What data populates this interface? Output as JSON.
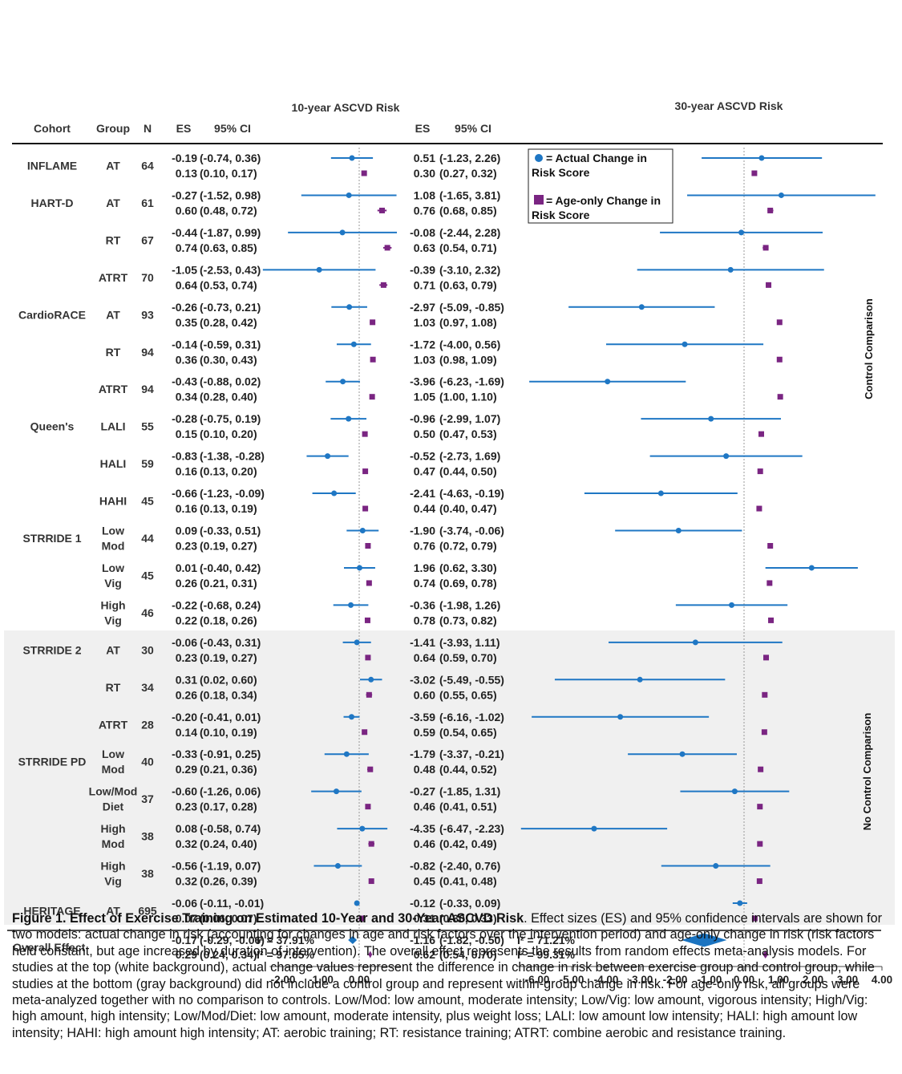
{
  "chart_data": {
    "type": "forest",
    "title_left": "10-year ASCVD Risk",
    "title_right": "30-year ASCVD Risk",
    "columns": {
      "cohort": "Cohort",
      "group": "Group",
      "n": "N",
      "es": "ES",
      "ci": "95% CI"
    },
    "legend": {
      "actual": [
        "= Actual Change in",
        "Risk Score"
      ],
      "age": [
        "= Age-only Change in",
        "Risk Score"
      ]
    },
    "series_colors": {
      "actual": "#1f77c4",
      "age_only": "#7a2582",
      "diamond": "#1a73c0",
      "gray_band": "#f0f0f0"
    },
    "sections": {
      "control": "Control Comparison",
      "no_control": "No Control Comparison"
    },
    "axis_left": {
      "xlim": [
        -2.35,
        1.1
      ],
      "ticks": [
        -2,
        -1,
        0
      ],
      "tick_labels": [
        "-2.00",
        "-1.00",
        "0.00"
      ]
    },
    "axis_right": {
      "xlim": [
        -6.6,
        4.0
      ],
      "ticks": [
        -6,
        -5,
        -4,
        -3,
        -2,
        -1,
        0,
        1,
        2,
        3,
        4
      ],
      "tick_labels": [
        "-6.00",
        "-5.00",
        "-4.00",
        "-3.00",
        "-2.00",
        "-1.00",
        "0.00",
        "1.00",
        "2.00",
        "3.00",
        "4.00"
      ]
    },
    "rows": [
      {
        "cohort": "INFLAME",
        "group": [
          "AT"
        ],
        "n": "64",
        "a10": [
          -0.19,
          -0.74,
          0.36
        ],
        "g10": [
          0.13,
          0.1,
          0.17
        ],
        "a30": [
          0.51,
          -1.23,
          2.26
        ],
        "g30": [
          0.3,
          0.27,
          0.32
        ],
        "a10t": [
          "-0.19",
          "(-0.74, 0.36)"
        ],
        "g10t": [
          "0.13",
          "(0.10, 0.17)"
        ],
        "a30t": [
          "0.51",
          "(-1.23, 2.26)"
        ],
        "g30t": [
          "0.30",
          "(0.27, 0.32)"
        ]
      },
      {
        "cohort": "HART-D",
        "group": [
          "AT"
        ],
        "n": "61",
        "a10": [
          -0.27,
          -1.52,
          0.98
        ],
        "g10": [
          0.6,
          0.48,
          0.72
        ],
        "a30": [
          1.08,
          -1.65,
          3.81
        ],
        "g30": [
          0.76,
          0.68,
          0.85
        ],
        "a10t": [
          "-0.27",
          "(-1.52, 0.98)"
        ],
        "g10t": [
          "0.60",
          "(0.48, 0.72)"
        ],
        "a30t": [
          "1.08",
          "(-1.65, 3.81)"
        ],
        "g30t": [
          "0.76",
          "(0.68, 0.85)"
        ]
      },
      {
        "cohort": "",
        "group": [
          "RT"
        ],
        "n": "67",
        "a10": [
          -0.44,
          -1.87,
          0.99
        ],
        "g10": [
          0.74,
          0.63,
          0.85
        ],
        "a30": [
          -0.08,
          -2.44,
          2.28
        ],
        "g30": [
          0.63,
          0.54,
          0.71
        ],
        "a10t": [
          "-0.44",
          "(-1.87, 0.99)"
        ],
        "g10t": [
          "0.74",
          "(0.63, 0.85)"
        ],
        "a30t": [
          "-0.08",
          "(-2.44, 2.28)"
        ],
        "g30t": [
          "0.63",
          "(0.54, 0.71)"
        ]
      },
      {
        "cohort": "",
        "group": [
          "ATRT"
        ],
        "n": "70",
        "a10": [
          -1.05,
          -2.53,
          0.43
        ],
        "g10": [
          0.64,
          0.53,
          0.74
        ],
        "a30": [
          -0.39,
          -3.1,
          2.32
        ],
        "g30": [
          0.71,
          0.63,
          0.79
        ],
        "a10t": [
          "-1.05",
          "(-2.53, 0.43)"
        ],
        "g10t": [
          "0.64",
          "(0.53, 0.74)"
        ],
        "a30t": [
          "-0.39",
          "(-3.10, 2.32)"
        ],
        "g30t": [
          "0.71",
          "(0.63, 0.79)"
        ]
      },
      {
        "cohort": "CardioRACE",
        "group": [
          "AT"
        ],
        "n": "93",
        "a10": [
          -0.26,
          -0.73,
          0.21
        ],
        "g10": [
          0.35,
          0.28,
          0.42
        ],
        "a30": [
          -2.97,
          -5.09,
          -0.85
        ],
        "g30": [
          1.03,
          0.97,
          1.08
        ],
        "a10t": [
          "-0.26",
          "(-0.73, 0.21)"
        ],
        "g10t": [
          "0.35",
          "(0.28, 0.42)"
        ],
        "a30t": [
          "-2.97",
          "(-5.09, -0.85)"
        ],
        "g30t": [
          "1.03",
          "(0.97, 1.08)"
        ]
      },
      {
        "cohort": "",
        "group": [
          "RT"
        ],
        "n": "94",
        "a10": [
          -0.14,
          -0.59,
          0.31
        ],
        "g10": [
          0.36,
          0.3,
          0.43
        ],
        "a30": [
          -1.72,
          -4.0,
          0.56
        ],
        "g30": [
          1.03,
          0.98,
          1.09
        ],
        "a10t": [
          "-0.14",
          "(-0.59, 0.31)"
        ],
        "g10t": [
          "0.36",
          "(0.30, 0.43)"
        ],
        "a30t": [
          "-1.72",
          "(-4.00, 0.56)"
        ],
        "g30t": [
          "1.03",
          "(0.98, 1.09)"
        ]
      },
      {
        "cohort": "",
        "group": [
          "ATRT"
        ],
        "n": "94",
        "a10": [
          -0.43,
          -0.88,
          0.02
        ],
        "g10": [
          0.34,
          0.28,
          0.4
        ],
        "a30": [
          -3.96,
          -6.23,
          -1.69
        ],
        "g30": [
          1.05,
          1.0,
          1.1
        ],
        "a10t": [
          "-0.43",
          "(-0.88, 0.02)"
        ],
        "g10t": [
          "0.34",
          "(0.28, 0.40)"
        ],
        "a30t": [
          "-3.96",
          "(-6.23, -1.69)"
        ],
        "g30t": [
          "1.05",
          "(1.00, 1.10)"
        ]
      },
      {
        "cohort": "Queen's",
        "group": [
          "LALI"
        ],
        "n": "55",
        "a10": [
          -0.28,
          -0.75,
          0.19
        ],
        "g10": [
          0.15,
          0.1,
          0.2
        ],
        "a30": [
          -0.96,
          -2.99,
          1.07
        ],
        "g30": [
          0.5,
          0.47,
          0.53
        ],
        "a10t": [
          "-0.28",
          "(-0.75, 0.19)"
        ],
        "g10t": [
          "0.15",
          "(0.10, 0.20)"
        ],
        "a30t": [
          "-0.96",
          "(-2.99, 1.07)"
        ],
        "g30t": [
          "0.50",
          "(0.47, 0.53)"
        ]
      },
      {
        "cohort": "",
        "group": [
          "HALI"
        ],
        "n": "59",
        "a10": [
          -0.83,
          -1.38,
          -0.28
        ],
        "g10": [
          0.16,
          0.13,
          0.2
        ],
        "a30": [
          -0.52,
          -2.73,
          1.69
        ],
        "g30": [
          0.47,
          0.44,
          0.5
        ],
        "a10t": [
          "-0.83",
          "(-1.38, -0.28)"
        ],
        "g10t": [
          "0.16",
          "(0.13, 0.20)"
        ],
        "a30t": [
          "-0.52",
          "(-2.73, 1.69)"
        ],
        "g30t": [
          "0.47",
          "(0.44, 0.50)"
        ]
      },
      {
        "cohort": "",
        "group": [
          "HAHI"
        ],
        "n": "45",
        "a10": [
          -0.66,
          -1.23,
          -0.09
        ],
        "g10": [
          0.16,
          0.13,
          0.19
        ],
        "a30": [
          -2.41,
          -4.63,
          -0.19
        ],
        "g30": [
          0.44,
          0.4,
          0.47
        ],
        "a10t": [
          "-0.66",
          "(-1.23, -0.09)"
        ],
        "g10t": [
          "0.16",
          "(0.13, 0.19)"
        ],
        "a30t": [
          "-2.41",
          "(-4.63, -0.19)"
        ],
        "g30t": [
          "0.44",
          "(0.40, 0.47)"
        ]
      },
      {
        "cohort": "STRRIDE 1",
        "group": [
          "Low",
          "Mod"
        ],
        "n": "44",
        "a10": [
          0.09,
          -0.33,
          0.51
        ],
        "g10": [
          0.23,
          0.19,
          0.27
        ],
        "a30": [
          -1.9,
          -3.74,
          -0.06
        ],
        "g30": [
          0.76,
          0.72,
          0.79
        ],
        "a10t": [
          "0.09",
          "(-0.33, 0.51)"
        ],
        "g10t": [
          "0.23",
          "(0.19, 0.27)"
        ],
        "a30t": [
          "-1.90",
          "(-3.74, -0.06)"
        ],
        "g30t": [
          "0.76",
          "(0.72, 0.79)"
        ]
      },
      {
        "cohort": "",
        "group": [
          "Low",
          "Vig"
        ],
        "n": "45",
        "a10": [
          0.01,
          -0.4,
          0.42
        ],
        "g10": [
          0.26,
          0.21,
          0.31
        ],
        "a30": [
          1.96,
          0.62,
          3.3
        ],
        "g30": [
          0.74,
          0.69,
          0.78
        ],
        "a10t": [
          "0.01",
          "(-0.40, 0.42)"
        ],
        "g10t": [
          "0.26",
          "(0.21, 0.31)"
        ],
        "a30t": [
          "1.96",
          "(0.62, 3.30)"
        ],
        "g30t": [
          "0.74",
          "(0.69, 0.78)"
        ]
      },
      {
        "cohort": "",
        "group": [
          "High",
          "Vig"
        ],
        "n": "46",
        "a10": [
          -0.22,
          -0.68,
          0.24
        ],
        "g10": [
          0.22,
          0.18,
          0.26
        ],
        "a30": [
          -0.36,
          -1.98,
          1.26
        ],
        "g30": [
          0.78,
          0.73,
          0.82
        ],
        "a10t": [
          "-0.22",
          "(-0.68, 0.24)"
        ],
        "g10t": [
          "0.22",
          "(0.18, 0.26)"
        ],
        "a30t": [
          "-0.36",
          "(-1.98, 1.26)"
        ],
        "g30t": [
          "0.78",
          "(0.73, 0.82)"
        ]
      },
      {
        "cohort": "STRRIDE 2",
        "group": [
          "AT"
        ],
        "n": "30",
        "a10": [
          -0.06,
          -0.43,
          0.31
        ],
        "g10": [
          0.23,
          0.19,
          0.27
        ],
        "a30": [
          -1.41,
          -3.93,
          1.11
        ],
        "g30": [
          0.64,
          0.59,
          0.7
        ],
        "a10t": [
          "-0.06",
          "(-0.43, 0.31)"
        ],
        "g10t": [
          "0.23",
          "(0.19, 0.27)"
        ],
        "a30t": [
          "-1.41",
          "(-3.93, 1.11)"
        ],
        "g30t": [
          "0.64",
          "(0.59, 0.70)"
        ]
      },
      {
        "cohort": "",
        "group": [
          "RT"
        ],
        "n": "34",
        "a10": [
          0.31,
          0.02,
          0.6
        ],
        "g10": [
          0.26,
          0.18,
          0.34
        ],
        "a30": [
          -3.02,
          -5.49,
          -0.55
        ],
        "g30": [
          0.6,
          0.55,
          0.65
        ],
        "a10t": [
          "0.31",
          "(0.02, 0.60)"
        ],
        "g10t": [
          "0.26",
          "(0.18, 0.34)"
        ],
        "a30t": [
          "-3.02",
          "(-5.49, -0.55)"
        ],
        "g30t": [
          "0.60",
          "(0.55, 0.65)"
        ]
      },
      {
        "cohort": "",
        "group": [
          "ATRT"
        ],
        "n": "28",
        "a10": [
          -0.2,
          -0.41,
          0.01
        ],
        "g10": [
          0.14,
          0.1,
          0.19
        ],
        "a30": [
          -3.59,
          -6.16,
          -1.02
        ],
        "g30": [
          0.59,
          0.54,
          0.65
        ],
        "a10t": [
          "-0.20",
          "(-0.41, 0.01)"
        ],
        "g10t": [
          "0.14",
          "(0.10, 0.19)"
        ],
        "a30t": [
          "-3.59",
          "(-6.16, -1.02)"
        ],
        "g30t": [
          "0.59",
          "(0.54, 0.65)"
        ]
      },
      {
        "cohort": "STRRIDE PD",
        "group": [
          "Low",
          "Mod"
        ],
        "n": "40",
        "a10": [
          -0.33,
          -0.91,
          0.25
        ],
        "g10": [
          0.29,
          0.21,
          0.36
        ],
        "a30": [
          -1.79,
          -3.37,
          -0.21
        ],
        "g30": [
          0.48,
          0.44,
          0.52
        ],
        "a10t": [
          "-0.33",
          "(-0.91, 0.25)"
        ],
        "g10t": [
          "0.29",
          "(0.21, 0.36)"
        ],
        "a30t": [
          "-1.79",
          "(-3.37, -0.21)"
        ],
        "g30t": [
          "0.48",
          "(0.44, 0.52)"
        ]
      },
      {
        "cohort": "",
        "group": [
          "Low/Mod",
          "Diet"
        ],
        "n": "37",
        "a10": [
          -0.6,
          -1.26,
          0.06
        ],
        "g10": [
          0.23,
          0.17,
          0.28
        ],
        "a30": [
          -0.27,
          -1.85,
          1.31
        ],
        "g30": [
          0.46,
          0.41,
          0.51
        ],
        "a10t": [
          "-0.60",
          "(-1.26, 0.06)"
        ],
        "g10t": [
          "0.23",
          "(0.17, 0.28)"
        ],
        "a30t": [
          "-0.27",
          "(-1.85, 1.31)"
        ],
        "g30t": [
          "0.46",
          "(0.41, 0.51)"
        ]
      },
      {
        "cohort": "",
        "group": [
          "High",
          "Mod"
        ],
        "n": "38",
        "a10": [
          0.08,
          -0.58,
          0.74
        ],
        "g10": [
          0.32,
          0.24,
          0.4
        ],
        "a30": [
          -4.35,
          -6.47,
          -2.23
        ],
        "g30": [
          0.46,
          0.42,
          0.49
        ],
        "a10t": [
          "0.08",
          "(-0.58, 0.74)"
        ],
        "g10t": [
          "0.32",
          "(0.24, 0.40)"
        ],
        "a30t": [
          "-4.35",
          "(-6.47, -2.23)"
        ],
        "g30t": [
          "0.46",
          "(0.42, 0.49)"
        ]
      },
      {
        "cohort": "",
        "group": [
          "High",
          "Vig"
        ],
        "n": "38",
        "a10": [
          -0.56,
          -1.19,
          0.07
        ],
        "g10": [
          0.32,
          0.26,
          0.39
        ],
        "a30": [
          -0.82,
          -2.4,
          0.76
        ],
        "g30": [
          0.45,
          0.41,
          0.48
        ],
        "a10t": [
          "-0.56",
          "(-1.19, 0.07)"
        ],
        "g10t": [
          "0.32",
          "(0.26, 0.39)"
        ],
        "a30t": [
          "-0.82",
          "(-2.40, 0.76)"
        ],
        "g30t": [
          "0.45",
          "(0.41, 0.48)"
        ]
      },
      {
        "cohort": "HERITAGE",
        "group": [
          "AT"
        ],
        "n": "695",
        "a10": [
          -0.06,
          -0.11,
          -0.01
        ],
        "g10": [
          0.07,
          0.06,
          0.07
        ],
        "a30": [
          -0.12,
          -0.33,
          0.09
        ],
        "g30": [
          0.31,
          0.3,
          0.33
        ],
        "a10t": [
          "-0.06",
          "(-0.11, -0.01)"
        ],
        "g10t": [
          "0.07",
          "(0.06, 0.07)"
        ],
        "a30t": [
          "-0.12",
          "(-0.33, 0.09)"
        ],
        "g30t": [
          "0.31",
          "(0.30, 0.33)"
        ]
      }
    ],
    "overall": {
      "label": "Overall Effect",
      "a10": [
        -0.17,
        -0.29,
        -0.06
      ],
      "g10": [
        0.29,
        0.24,
        0.34
      ],
      "a30": [
        -1.16,
        -1.82,
        -0.5
      ],
      "g30": [
        0.62,
        0.54,
        0.7
      ],
      "a10t": [
        "-0.17",
        "(-0.29, -0.06)"
      ],
      "g10t": [
        "0.29",
        "(0.24, 0.34)"
      ],
      "a30t": [
        "-1.16",
        "(-1.82, -0.50)"
      ],
      "g30t": [
        "0.62",
        "(0.54, 0.70)"
      ],
      "i2_a10": "37.91%",
      "i2_g10": "97.65%",
      "i2_a30": "71.21%",
      "i2_g30": "99.31%"
    }
  },
  "caption": {
    "title": "Figure 1. Effect of Exercise Training on Estimated 10-Year and 30-Year ASCVD Risk",
    "body": ". Effect sizes (ES) and 95% confidence intervals are shown for two models: actual change in risk (accounting for changes in age and risk factors over the intervention period) and age-only change in risk (risk factors held constant, but age increased by duration of intervention). The overall effect represents the results from random effects meta-analysis models. For studies at the top (white background), actual change values represent the difference in change in risk between exercise group and control group, while studies at the bottom (gray background) did not include a control group and represent within-group change in risk. For age-only risk, all groups were meta-analyzed together with no comparison to controls. Low/Mod: low amount, moderate intensity; Low/Vig: low amount, vigorous intensity; High/Vig: high amount, high intensity; Low/Mod/Diet: low amount, moderate intensity, plus weight loss; LALI: low amount low intensity; HALI: high amount low intensity; HAHI: high amount high intensity; AT: aerobic training; RT: resistance training; ATRT: combine aerobic and resistance training."
  }
}
